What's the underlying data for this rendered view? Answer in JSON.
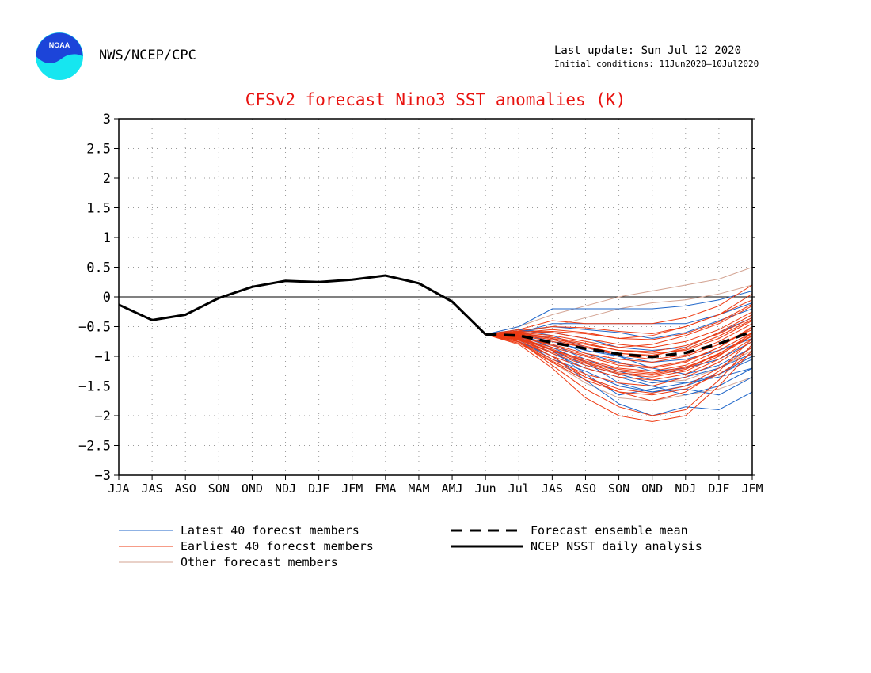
{
  "header": {
    "org": "NWS/NCEP/CPC",
    "last_update": "Last update: Sun Jul 12 2020",
    "initial_conditions": "Initial conditions: 11Jun2020–10Jul2020",
    "logo_text": "NOAA"
  },
  "colors": {
    "title": "#e8120f",
    "latest": "#1f66c9",
    "earliest": "#ee3a12",
    "other": "#d3a392",
    "analysis": "#000000",
    "mean": "#000000",
    "logo_blue": "#1c44d9",
    "logo_cyan": "#16e6f0"
  },
  "chart_data": {
    "type": "line",
    "title": "CFSv2 forecast Nino3 SST anomalies (K)",
    "xlabel": "",
    "ylabel": "",
    "x_ticks": [
      "JJA",
      "JAS",
      "ASO",
      "SON",
      "OND",
      "NDJ",
      "DJF",
      "JFM",
      "FMA",
      "MAM",
      "AMJ",
      "Jun",
      "Jul",
      "JAS",
      "ASO",
      "SON",
      "OND",
      "NDJ",
      "DJF",
      "JFM"
    ],
    "y_ticks": [
      "3",
      "2.5",
      "2",
      "1.5",
      "1",
      "0.5",
      "0",
      "−0.5",
      "−1",
      "−1.5",
      "−2",
      "−2.5",
      "−3"
    ],
    "ylim": [
      -3,
      3
    ],
    "grid": true,
    "legend": [
      {
        "label": "Latest 40 forecst members",
        "style": "latest"
      },
      {
        "label": "Earliest 40 forecst members",
        "style": "earliest"
      },
      {
        "label": "Other forecast members",
        "style": "other"
      },
      {
        "label": "Forecast ensemble mean",
        "style": "mean"
      },
      {
        "label": "NCEP NSST daily analysis",
        "style": "analysis"
      }
    ],
    "analysis": [
      -0.13,
      -0.39,
      -0.3,
      -0.02,
      0.17,
      0.27,
      0.25,
      0.29,
      0.36,
      0.23,
      -0.08,
      -0.63
    ],
    "ensemble_mean": [
      -0.63,
      -0.65,
      -0.77,
      -0.87,
      -0.96,
      -1.01,
      -0.94,
      -0.79,
      -0.58
    ],
    "members": [
      {
        "group": "latest",
        "values": [
          -0.63,
          -0.5,
          -0.2,
          -0.2,
          -0.2,
          -0.2,
          -0.15,
          -0.05,
          0.1
        ]
      },
      {
        "group": "latest",
        "values": [
          -0.63,
          -0.6,
          -0.45,
          -0.45,
          -0.45,
          -0.45,
          -0.45,
          -0.3,
          -0.1
        ]
      },
      {
        "group": "latest",
        "values": [
          -0.63,
          -0.7,
          -0.9,
          -1.3,
          -1.65,
          -1.55,
          -1.45,
          -1.35,
          -1.2
        ]
      },
      {
        "group": "latest",
        "values": [
          -0.63,
          -0.75,
          -1.0,
          -1.4,
          -1.8,
          -2.0,
          -1.85,
          -1.9,
          -1.6
        ]
      },
      {
        "group": "latest",
        "values": [
          -0.63,
          -0.65,
          -0.85,
          -1.1,
          -1.45,
          -1.6,
          -1.55,
          -1.65,
          -1.35
        ]
      },
      {
        "group": "latest",
        "values": [
          -0.63,
          -0.55,
          -0.6,
          -0.7,
          -0.85,
          -0.9,
          -0.85,
          -0.6,
          -0.35
        ]
      },
      {
        "group": "latest",
        "values": [
          -0.63,
          -0.7,
          -0.95,
          -1.2,
          -1.35,
          -1.5,
          -1.65,
          -1.5,
          -1.2
        ]
      },
      {
        "group": "latest",
        "values": [
          -0.63,
          -0.6,
          -0.7,
          -0.95,
          -1.1,
          -1.25,
          -1.2,
          -1.05,
          -0.75
        ]
      },
      {
        "group": "latest",
        "values": [
          -0.63,
          -0.65,
          -0.8,
          -1.05,
          -1.25,
          -1.4,
          -1.45,
          -1.3,
          -1.0
        ]
      },
      {
        "group": "latest",
        "values": [
          -0.63,
          -0.58,
          -0.5,
          -0.55,
          -0.6,
          -0.7,
          -0.6,
          -0.4,
          -0.2
        ]
      },
      {
        "group": "latest",
        "values": [
          -0.63,
          -0.72,
          -1.05,
          -1.25,
          -1.5,
          -1.6,
          -1.5,
          -1.3,
          -1.05
        ]
      },
      {
        "group": "latest",
        "values": [
          -0.63,
          -0.62,
          -0.75,
          -0.9,
          -1.0,
          -1.1,
          -1.05,
          -0.9,
          -0.7
        ]
      },
      {
        "group": "latest",
        "values": [
          -0.63,
          -0.68,
          -0.9,
          -1.15,
          -1.3,
          -1.45,
          -1.35,
          -1.2,
          -0.95
        ]
      },
      {
        "group": "latest",
        "values": [
          -0.63,
          -0.55,
          -0.65,
          -0.85,
          -1.0,
          -1.2,
          -1.3,
          -1.15,
          -0.85
        ]
      },
      {
        "group": "other",
        "values": [
          -0.63,
          -0.5,
          -0.3,
          -0.15,
          0.0,
          0.1,
          0.2,
          0.3,
          0.5
        ]
      },
      {
        "group": "other",
        "values": [
          -0.63,
          -0.6,
          -0.5,
          -0.35,
          -0.2,
          -0.1,
          -0.05,
          0.05,
          0.2
        ]
      },
      {
        "group": "other",
        "values": [
          -0.63,
          -0.75,
          -1.1,
          -1.45,
          -1.7,
          -1.75,
          -1.65,
          -1.55,
          -1.35
        ]
      },
      {
        "group": "other",
        "values": [
          -0.63,
          -0.65,
          -0.85,
          -1.1,
          -1.3,
          -1.45,
          -1.4,
          -1.2,
          -0.9
        ]
      },
      {
        "group": "earliest",
        "values": [
          -0.63,
          -0.8,
          -1.2,
          -1.7,
          -2.0,
          -2.1,
          -2.0,
          -1.5,
          -0.9
        ]
      },
      {
        "group": "earliest",
        "values": [
          -0.63,
          -0.75,
          -1.15,
          -1.55,
          -1.85,
          -2.0,
          -1.9,
          -1.4,
          -0.8
        ]
      },
      {
        "group": "earliest",
        "values": [
          -0.63,
          -0.7,
          -1.0,
          -1.35,
          -1.6,
          -1.75,
          -1.6,
          -1.25,
          -0.7
        ]
      },
      {
        "group": "earliest",
        "values": [
          -0.63,
          -0.55,
          -0.4,
          -0.45,
          -0.45,
          -0.45,
          -0.35,
          -0.15,
          0.2
        ]
      },
      {
        "group": "earliest",
        "values": [
          -0.63,
          -0.6,
          -0.55,
          -0.6,
          -0.7,
          -0.65,
          -0.5,
          -0.3,
          0.05
        ]
      },
      {
        "group": "earliest",
        "values": [
          -0.63,
          -0.65,
          -0.75,
          -0.85,
          -0.95,
          -1.0,
          -0.85,
          -0.6,
          -0.3
        ]
      },
      {
        "group": "earliest",
        "values": [
          -0.63,
          -0.7,
          -0.85,
          -1.0,
          -1.15,
          -1.2,
          -1.1,
          -0.85,
          -0.5
        ]
      },
      {
        "group": "earliest",
        "values": [
          -0.63,
          -0.72,
          -0.95,
          -1.15,
          -1.3,
          -1.35,
          -1.25,
          -1.0,
          -0.6
        ]
      },
      {
        "group": "earliest",
        "values": [
          -0.63,
          -0.62,
          -0.7,
          -0.8,
          -0.9,
          -0.95,
          -0.9,
          -0.7,
          -0.4
        ]
      },
      {
        "group": "earliest",
        "values": [
          -0.63,
          -0.68,
          -0.8,
          -0.95,
          -1.05,
          -1.1,
          -1.0,
          -0.8,
          -0.55
        ]
      },
      {
        "group": "earliest",
        "values": [
          -0.63,
          -0.58,
          -0.6,
          -0.7,
          -0.8,
          -0.85,
          -0.75,
          -0.55,
          -0.25
        ]
      },
      {
        "group": "earliest",
        "values": [
          -0.63,
          -0.75,
          -1.05,
          -1.3,
          -1.45,
          -1.5,
          -1.35,
          -1.1,
          -0.75
        ]
      },
      {
        "group": "earliest",
        "values": [
          -0.63,
          -0.66,
          -0.9,
          -1.1,
          -1.25,
          -1.3,
          -1.2,
          -0.95,
          -0.65
        ]
      },
      {
        "group": "earliest",
        "values": [
          -0.63,
          -0.6,
          -0.65,
          -0.75,
          -0.85,
          -0.8,
          -0.65,
          -0.45,
          -0.15
        ]
      },
      {
        "group": "earliest",
        "values": [
          -0.63,
          -0.7,
          -0.9,
          -1.05,
          -1.2,
          -1.25,
          -1.15,
          -0.9,
          -0.6
        ]
      },
      {
        "group": "earliest",
        "values": [
          -0.63,
          -0.64,
          -0.72,
          -0.85,
          -0.98,
          -1.05,
          -0.98,
          -0.75,
          -0.45
        ]
      },
      {
        "group": "earliest",
        "values": [
          -0.63,
          -0.78,
          -1.1,
          -1.4,
          -1.6,
          -1.65,
          -1.55,
          -1.3,
          -0.95
        ]
      },
      {
        "group": "earliest",
        "values": [
          -0.63,
          -0.57,
          -0.5,
          -0.52,
          -0.58,
          -0.62,
          -0.5,
          -0.3,
          -0.05
        ]
      },
      {
        "group": "earliest",
        "values": [
          -0.63,
          -0.73,
          -1.0,
          -1.2,
          -1.35,
          -1.4,
          -1.3,
          -1.05,
          -0.7
        ]
      },
      {
        "group": "earliest",
        "values": [
          -0.63,
          -0.61,
          -0.68,
          -0.78,
          -0.9,
          -0.92,
          -0.82,
          -0.62,
          -0.35
        ]
      },
      {
        "group": "earliest",
        "values": [
          -0.63,
          -0.69,
          -0.88,
          -1.08,
          -1.22,
          -1.28,
          -1.18,
          -0.98,
          -0.66
        ]
      },
      {
        "group": "earliest",
        "values": [
          -0.63,
          -0.76,
          -1.08,
          -1.35,
          -1.55,
          -1.62,
          -1.5,
          -1.2,
          -0.85
        ]
      },
      {
        "group": "earliest",
        "values": [
          -0.63,
          -0.59,
          -0.58,
          -0.62,
          -0.7,
          -0.72,
          -0.62,
          -0.42,
          -0.12
        ]
      },
      {
        "group": "earliest",
        "values": [
          -0.63,
          -0.67,
          -0.82,
          -0.98,
          -1.12,
          -1.18,
          -1.08,
          -0.85,
          -0.52
        ]
      },
      {
        "group": "earliest",
        "values": [
          -0.63,
          -0.71,
          -0.93,
          -1.12,
          -1.28,
          -1.32,
          -1.22,
          -0.96,
          -0.62
        ]
      },
      {
        "group": "earliest",
        "values": [
          -0.63,
          -0.63,
          -0.7,
          -0.83,
          -0.95,
          -0.98,
          -0.88,
          -0.66,
          -0.38
        ]
      }
    ]
  }
}
